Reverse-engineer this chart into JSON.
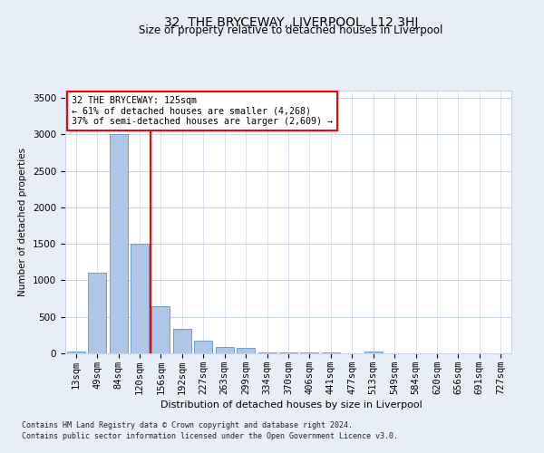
{
  "title": "32, THE BRYCEWAY, LIVERPOOL, L12 3HJ",
  "subtitle": "Size of property relative to detached houses in Liverpool",
  "xlabel": "Distribution of detached houses by size in Liverpool",
  "ylabel": "Number of detached properties",
  "footnote1": "Contains HM Land Registry data © Crown copyright and database right 2024.",
  "footnote2": "Contains public sector information licensed under the Open Government Licence v3.0.",
  "bar_labels": [
    "13sqm",
    "49sqm",
    "84sqm",
    "120sqm",
    "156sqm",
    "192sqm",
    "227sqm",
    "263sqm",
    "299sqm",
    "334sqm",
    "370sqm",
    "406sqm",
    "441sqm",
    "477sqm",
    "513sqm",
    "549sqm",
    "584sqm",
    "620sqm",
    "656sqm",
    "691sqm",
    "727sqm"
  ],
  "bar_values": [
    30,
    1100,
    3000,
    1500,
    650,
    330,
    180,
    90,
    75,
    10,
    10,
    10,
    10,
    5,
    20,
    5,
    5,
    5,
    5,
    5,
    5
  ],
  "bar_color": "#aec6e8",
  "bar_edgecolor": "#5a96c8",
  "vline_color": "red",
  "vline_position": 3.5,
  "annotation_text": "32 THE BRYCEWAY: 125sqm\n← 61% of detached houses are smaller (4,268)\n37% of semi-detached houses are larger (2,609) →",
  "annotation_box_edgecolor": "red",
  "annotation_box_facecolor": "white",
  "ylim": [
    0,
    3600
  ],
  "yticks": [
    0,
    500,
    1000,
    1500,
    2000,
    2500,
    3000,
    3500
  ],
  "background_color": "#e8eef7",
  "plot_bg_color": "white",
  "grid_color": "#c8d4e8",
  "title_fontsize": 10,
  "label_fontsize": 7.5,
  "tick_fontsize": 7.5,
  "footnote_fontsize": 6
}
